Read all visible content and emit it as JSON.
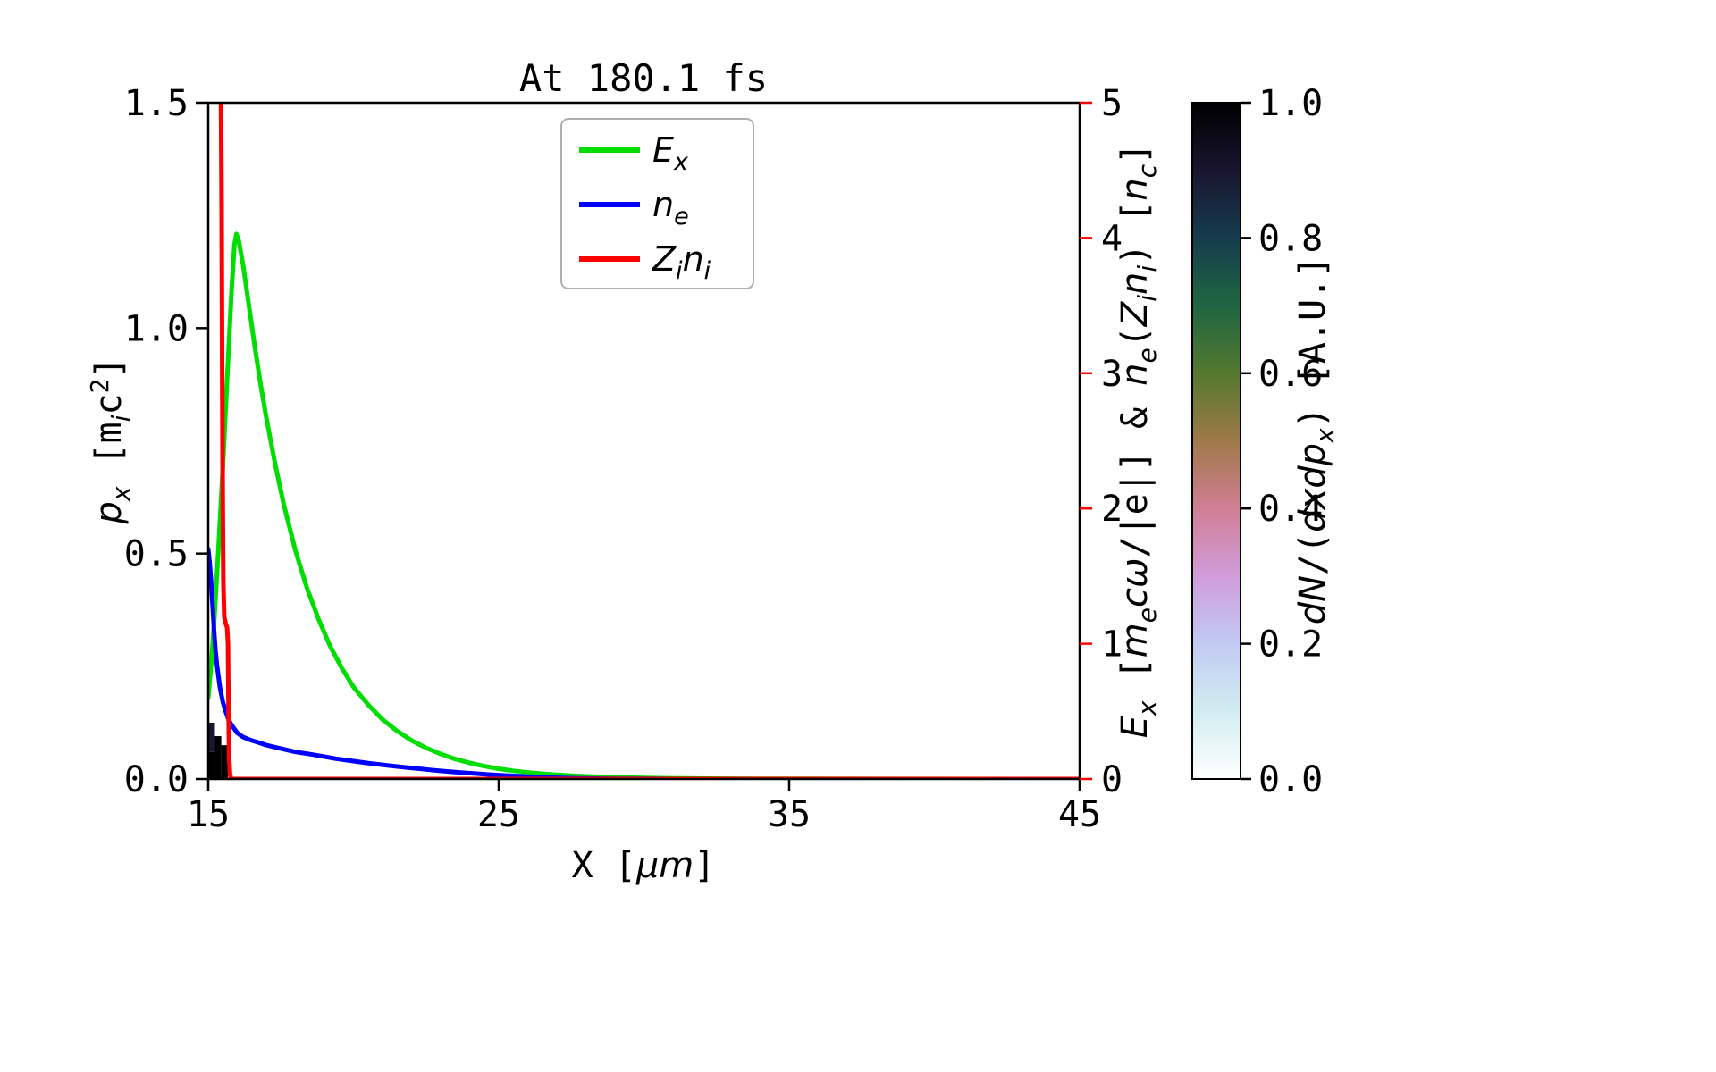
{
  "figure": {
    "background": "#ffffff"
  },
  "title": "At 180.1 fs",
  "axes": {
    "x": {
      "label_plain": "X [μm]",
      "segments": [
        {
          "t": "X [",
          "m": 1
        },
        {
          "t": "μm",
          "i": 1
        },
        {
          "t": "]",
          "m": 1
        }
      ],
      "min": 15,
      "max": 45,
      "ticks": [
        {
          "v": 15,
          "label": "15"
        },
        {
          "v": 25,
          "label": "25"
        },
        {
          "v": 35,
          "label": "35"
        },
        {
          "v": 45,
          "label": "45"
        }
      ]
    },
    "y_left": {
      "label_plain": "p_x [m_i c^2]",
      "segments": [
        {
          "t": "p",
          "i": 1
        },
        {
          "t": "x",
          "i": 1,
          "sub": 1
        },
        {
          "t": " [m",
          "m": 1
        },
        {
          "t": "i",
          "i": 1,
          "sub": 1
        },
        {
          "t": "c",
          "m": 1
        },
        {
          "t": "2",
          "m": 1,
          "sup": 1
        },
        {
          "t": "]",
          "m": 1
        }
      ],
      "min": 0.0,
      "max": 1.5,
      "ticks": [
        {
          "v": 0.0,
          "label": "0.0"
        },
        {
          "v": 0.5,
          "label": "0.5"
        },
        {
          "v": 1.0,
          "label": "1.0"
        },
        {
          "v": 1.5,
          "label": "1.5"
        }
      ]
    },
    "y_right": {
      "label_plain": "E_x [m_e cω/|e|] & n_e(Z_i n_i) [n_c]",
      "segments": [
        {
          "t": "E",
          "i": 1
        },
        {
          "t": "x",
          "i": 1,
          "sub": 1
        },
        {
          "t": " [",
          "m": 1
        },
        {
          "t": "m",
          "i": 1
        },
        {
          "t": "e",
          "i": 1,
          "sub": 1
        },
        {
          "t": "c",
          "i": 1
        },
        {
          "t": "ω",
          "i": 1
        },
        {
          "t": "/|e|]",
          "m": 1
        },
        {
          "t": " & ",
          "m": 1
        },
        {
          "t": "n",
          "i": 1
        },
        {
          "t": "e",
          "i": 1,
          "sub": 1
        },
        {
          "t": "(",
          "m": 1
        },
        {
          "t": "Z",
          "i": 1
        },
        {
          "t": "i",
          "i": 1,
          "sub": 1
        },
        {
          "t": "n",
          "i": 1
        },
        {
          "t": "i",
          "i": 1,
          "sub": 1
        },
        {
          "t": ")",
          "m": 1
        },
        {
          "t": " [",
          "m": 1
        },
        {
          "t": "n",
          "i": 1
        },
        {
          "t": "c",
          "i": 1,
          "sub": 1
        },
        {
          "t": "]",
          "m": 1
        }
      ],
      "min": 0,
      "max": 5,
      "color": "#ff0000",
      "ticks": [
        {
          "v": 0,
          "label": "0"
        },
        {
          "v": 1,
          "label": "1"
        },
        {
          "v": 2,
          "label": "2"
        },
        {
          "v": 3,
          "label": "3"
        },
        {
          "v": 4,
          "label": "4"
        },
        {
          "v": 5,
          "label": "5"
        }
      ]
    }
  },
  "legend": {
    "entries": [
      {
        "name": "E_x",
        "color": "#00dd00",
        "segments": [
          {
            "t": "E",
            "i": 1
          },
          {
            "t": "x",
            "i": 1,
            "sub": 1
          }
        ]
      },
      {
        "name": "n_e",
        "color": "#0000ff",
        "segments": [
          {
            "t": "n",
            "i": 1
          },
          {
            "t": "e",
            "i": 1,
            "sub": 1
          }
        ]
      },
      {
        "name": "Z_i n_i",
        "color": "#ff0000",
        "segments": [
          {
            "t": "Z",
            "i": 1
          },
          {
            "t": "i",
            "i": 1,
            "sub": 1
          },
          {
            "t": "n",
            "i": 1
          },
          {
            "t": "i",
            "i": 1,
            "sub": 1
          }
        ]
      }
    ]
  },
  "colorbar": {
    "label_plain": "dN/(dxdp_x) [A.U.]",
    "segments": [
      {
        "t": "dN",
        "i": 1
      },
      {
        "t": "/(",
        "m": 1
      },
      {
        "t": "dxdp",
        "i": 1
      },
      {
        "t": "x",
        "i": 1,
        "sub": 1
      },
      {
        "t": ")",
        "m": 1
      },
      {
        "t": " [A.U.]",
        "m": 1
      }
    ],
    "min": 0.0,
    "max": 1.0,
    "cmap_name": "cubehelix_r",
    "ticks": [
      {
        "v": 1.0,
        "label": "1.0"
      },
      {
        "v": 0.8,
        "label": "0.8"
      },
      {
        "v": 0.6,
        "label": "0.6"
      },
      {
        "v": 0.4,
        "label": "0.4"
      },
      {
        "v": 0.2,
        "label": "0.2"
      },
      {
        "v": 0.0,
        "label": "0.0"
      }
    ],
    "stops": [
      {
        "v": 0.0,
        "c": "#ffffff"
      },
      {
        "v": 0.1,
        "c": "#d1edf0"
      },
      {
        "v": 0.2,
        "c": "#c1caf3"
      },
      {
        "v": 0.3,
        "c": "#d09cda"
      },
      {
        "v": 0.4,
        "c": "#d07e93"
      },
      {
        "v": 0.5,
        "c": "#a07949"
      },
      {
        "v": 0.6,
        "c": "#54792f"
      },
      {
        "v": 0.7,
        "c": "#1f6642"
      },
      {
        "v": 0.8,
        "c": "#163d4e"
      },
      {
        "v": 0.9,
        "c": "#1a1530"
      },
      {
        "v": 1.0,
        "c": "#000000"
      }
    ]
  },
  "chart_data": {
    "type": "line",
    "title": "At 180.1 fs",
    "xlabel": "X [μm]",
    "ylabel_left": "p_x [m_i c^2]",
    "ylabel_right": "E_x [m_e cω/|e|] & n_e(Z_i n_i) [n_c]",
    "xlim": [
      15,
      45
    ],
    "ylim_left": [
      0,
      1.5
    ],
    "ylim_right": [
      0,
      5
    ],
    "grid": false,
    "legend_position": "upper center",
    "series": [
      {
        "name": "E_x",
        "axis": "right",
        "color": "#00dd00",
        "points": [
          [
            15.0,
            0.6
          ],
          [
            15.1,
            0.85
          ],
          [
            15.2,
            1.15
          ],
          [
            15.35,
            1.7
          ],
          [
            15.5,
            2.3
          ],
          [
            15.65,
            2.95
          ],
          [
            15.8,
            3.6
          ],
          [
            15.9,
            3.95
          ],
          [
            15.97,
            4.03
          ],
          [
            16.05,
            3.98
          ],
          [
            16.2,
            3.8
          ],
          [
            16.4,
            3.5
          ],
          [
            16.6,
            3.2
          ],
          [
            16.8,
            2.92
          ],
          [
            17.0,
            2.67
          ],
          [
            17.3,
            2.33
          ],
          [
            17.6,
            2.03
          ],
          [
            18.0,
            1.69
          ],
          [
            18.4,
            1.41
          ],
          [
            18.8,
            1.18
          ],
          [
            19.2,
            0.98
          ],
          [
            19.6,
            0.82
          ],
          [
            20.0,
            0.68
          ],
          [
            20.5,
            0.55
          ],
          [
            21.0,
            0.44
          ],
          [
            21.5,
            0.355
          ],
          [
            22.0,
            0.285
          ],
          [
            22.5,
            0.23
          ],
          [
            23.0,
            0.185
          ],
          [
            23.5,
            0.148
          ],
          [
            24.0,
            0.119
          ],
          [
            24.5,
            0.095
          ],
          [
            25.0,
            0.076
          ],
          [
            25.5,
            0.061
          ],
          [
            26.0,
            0.049
          ],
          [
            26.5,
            0.039
          ],
          [
            27.0,
            0.031
          ],
          [
            27.5,
            0.025
          ],
          [
            28.0,
            0.02
          ],
          [
            29.0,
            0.013
          ],
          [
            30.0,
            0.008
          ],
          [
            31.0,
            0.005
          ],
          [
            32.0,
            0.003
          ],
          [
            34.0,
            0.002
          ],
          [
            36.0,
            0.001
          ],
          [
            40.0,
            0.0005
          ],
          [
            45.0,
            0.0003
          ]
        ]
      },
      {
        "name": "n_e",
        "axis": "right",
        "color": "#0000ff",
        "points": [
          [
            15.0,
            1.7
          ],
          [
            15.05,
            1.6
          ],
          [
            15.1,
            1.45
          ],
          [
            15.15,
            1.28
          ],
          [
            15.2,
            1.1
          ],
          [
            15.25,
            0.95
          ],
          [
            15.3,
            0.84
          ],
          [
            15.4,
            0.68
          ],
          [
            15.5,
            0.57
          ],
          [
            15.6,
            0.5
          ],
          [
            15.7,
            0.44
          ],
          [
            15.8,
            0.4
          ],
          [
            16.0,
            0.34
          ],
          [
            16.2,
            0.31
          ],
          [
            16.5,
            0.285
          ],
          [
            16.8,
            0.265
          ],
          [
            17.0,
            0.25
          ],
          [
            17.3,
            0.235
          ],
          [
            17.6,
            0.22
          ],
          [
            18.0,
            0.2
          ],
          [
            18.3,
            0.19
          ],
          [
            18.6,
            0.18
          ],
          [
            19.0,
            0.165
          ],
          [
            19.4,
            0.15
          ],
          [
            19.8,
            0.138
          ],
          [
            20.2,
            0.126
          ],
          [
            20.6,
            0.115
          ],
          [
            21.0,
            0.105
          ],
          [
            21.4,
            0.095
          ],
          [
            21.8,
            0.086
          ],
          [
            22.2,
            0.077
          ],
          [
            22.6,
            0.068
          ],
          [
            23.0,
            0.06
          ],
          [
            23.4,
            0.053
          ],
          [
            23.8,
            0.046
          ],
          [
            24.2,
            0.04
          ],
          [
            24.6,
            0.034
          ],
          [
            25.0,
            0.029
          ],
          [
            25.5,
            0.023
          ],
          [
            26.0,
            0.018
          ],
          [
            26.5,
            0.013
          ],
          [
            27.0,
            0.009
          ],
          [
            27.5,
            0.006
          ],
          [
            28.0,
            0.004
          ],
          [
            29.0,
            0.002
          ],
          [
            30.0,
            0.001
          ],
          [
            31.0,
            0.0
          ],
          [
            45.0,
            0.0
          ]
        ]
      },
      {
        "name": "Z_i n_i",
        "axis": "right",
        "color": "#ff0000",
        "points": [
          [
            15.44,
            5.0
          ],
          [
            15.46,
            4.2
          ],
          [
            15.48,
            3.0
          ],
          [
            15.5,
            2.0
          ],
          [
            15.52,
            1.45
          ],
          [
            15.55,
            1.2
          ],
          [
            15.6,
            1.15
          ],
          [
            15.65,
            1.12
          ],
          [
            15.68,
            1.0
          ],
          [
            15.7,
            0.5
          ],
          [
            15.72,
            0.15
          ],
          [
            15.75,
            0.03
          ],
          [
            15.8,
            0.0
          ],
          [
            16.5,
            0.0
          ],
          [
            45.0,
            0.0
          ]
        ]
      }
    ],
    "histogram2d": {
      "quantity": "dN/(dxdp_x) [A.U.]",
      "colormap": "cubehelix_r",
      "x_axis": "X [μm]",
      "y_axis": "p_x [m_i c^2] (left axis)",
      "cells": [
        {
          "x0": 15.0,
          "x1": 15.23,
          "p0": 0.0,
          "p1": 0.06,
          "v": 1.0
        },
        {
          "x0": 15.0,
          "x1": 15.23,
          "p0": 0.06,
          "p1": 0.125,
          "v": 0.9
        },
        {
          "x0": 15.23,
          "x1": 15.45,
          "p0": 0.0,
          "p1": 0.095,
          "v": 1.0
        },
        {
          "x0": 15.45,
          "x1": 15.68,
          "p0": 0.0,
          "p1": 0.075,
          "v": 1.0
        }
      ]
    }
  }
}
